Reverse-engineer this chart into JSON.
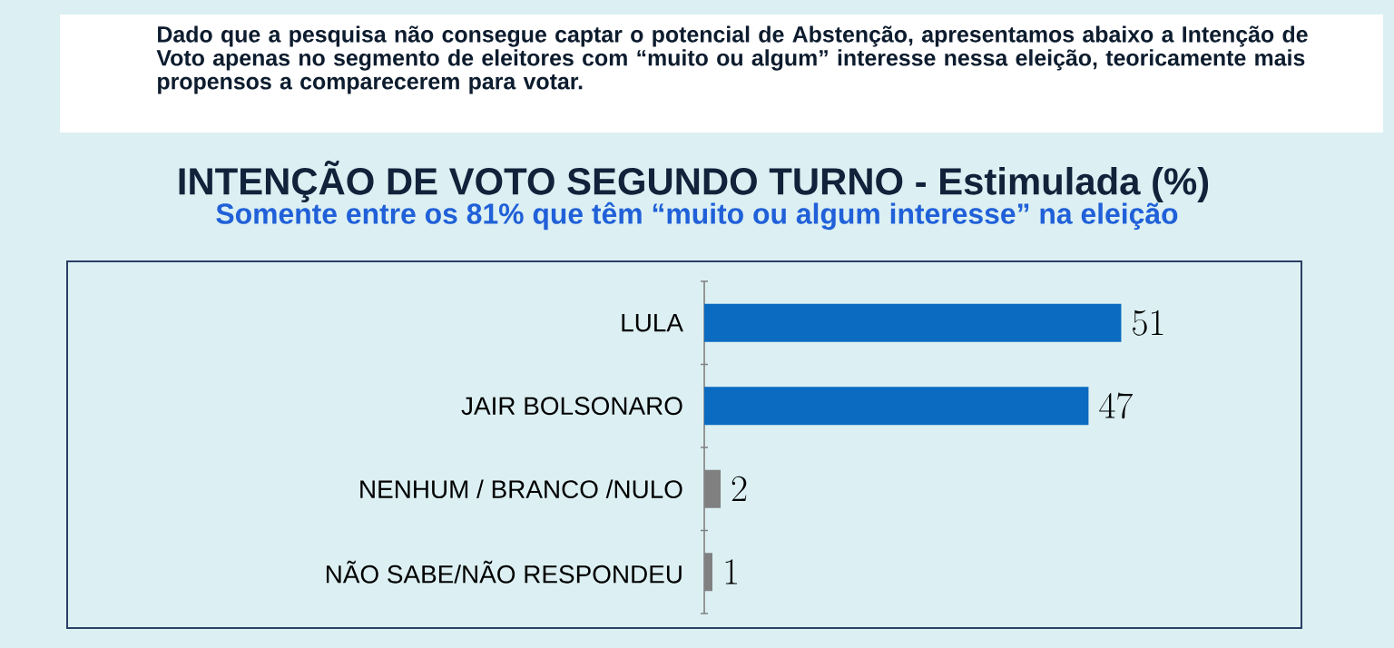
{
  "chart_data": {
    "type": "bar",
    "orientation": "horizontal",
    "title": "INTENÇÃO DE VOTO SEGUNDO TURNO - Estimulada (%)",
    "subtitle": "Somente entre os 81% que têm “muito ou algum interesse” na eleição",
    "annotations": [
      "Dado que a pesquisa não consegue captar o potencial de Abstenção, apresentamos abaixo a Intenção de Voto apenas no segmento de eleitores com “muito ou algum” interesse nessa eleição, teoricamente mais propensos a comparecerem para votar."
    ],
    "categories": [
      "LULA",
      "JAIR BOLSONARO",
      "NENHUM / BRANCO /NULO",
      "NÃO SABE/NÃO RESPONDEU"
    ],
    "values": [
      51,
      47,
      2,
      1
    ],
    "colors": [
      "#0a6bc0",
      "#0a6bc0",
      "#808080",
      "#808080"
    ],
    "data_labels": true
  }
}
